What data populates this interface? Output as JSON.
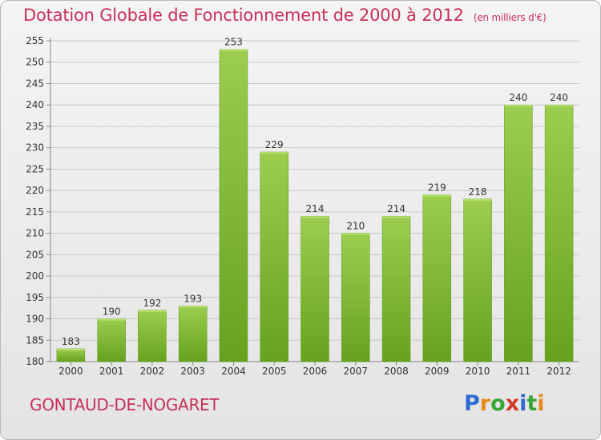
{
  "header": {
    "title": "Dotation Globale de Fonctionnement de 2000 à 2012",
    "unit": "(en milliers d'€)"
  },
  "footer": {
    "commune": "GONTAUD-DE-NOGARET",
    "logo": "Proxiti"
  },
  "colors": {
    "title": "#c8305a",
    "bar_top": "#9ccd4f",
    "bar_bottom": "#66a21e",
    "grid": "#c8c8c8"
  },
  "chart_data": {
    "type": "bar",
    "categories": [
      "2000",
      "2001",
      "2002",
      "2003",
      "2004",
      "2005",
      "2006",
      "2007",
      "2008",
      "2009",
      "2010",
      "2011",
      "2012"
    ],
    "values": [
      183,
      190,
      192,
      193,
      253,
      229,
      214,
      210,
      214,
      219,
      218,
      240,
      240
    ],
    "data_labels": [
      "183",
      "190",
      "192",
      "193",
      "253",
      "229",
      "214",
      "210",
      "214",
      "219",
      "218",
      "240",
      "240"
    ],
    "title": "Dotation Globale de Fonctionnement de 2000 à 2012",
    "xlabel": "",
    "ylabel": "",
    "ylim": [
      180,
      255
    ],
    "yticks": [
      180,
      185,
      190,
      195,
      200,
      205,
      210,
      215,
      220,
      225,
      230,
      235,
      240,
      245,
      250,
      255
    ],
    "grid": true,
    "legend": "none"
  }
}
